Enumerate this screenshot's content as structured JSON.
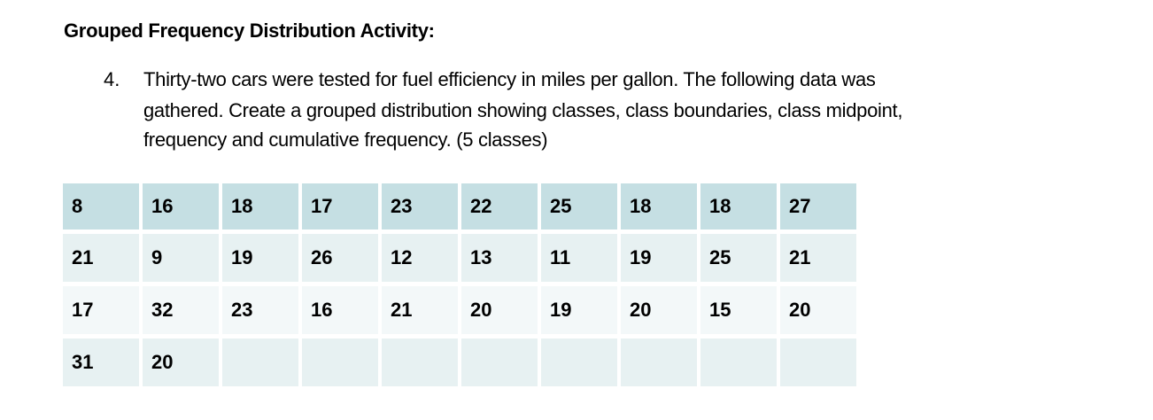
{
  "header": {
    "title": "Grouped Frequency Distribution Activity:"
  },
  "question": {
    "number": "4.",
    "lines": [
      "Thirty-two cars were tested for fuel efficiency in miles per gallon.  The following data was",
      "gathered.  Create a grouped distribution showing classes, class boundaries, class midpoint,",
      "frequency and cumulative frequency. (5 classes)"
    ]
  },
  "table": {
    "rows": [
      [
        8,
        16,
        18,
        17,
        23,
        22,
        25,
        18,
        18,
        27
      ],
      [
        21,
        9,
        19,
        26,
        12,
        13,
        11,
        19,
        25,
        21
      ],
      [
        17,
        32,
        23,
        16,
        21,
        20,
        19,
        20,
        15,
        20
      ],
      [
        31,
        20
      ]
    ]
  }
}
